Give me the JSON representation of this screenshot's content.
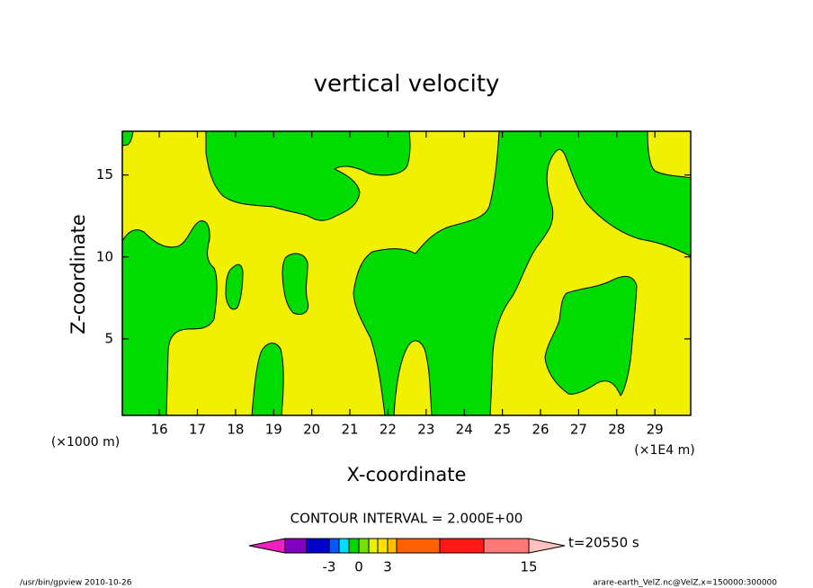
{
  "chart_data": {
    "type": "contour",
    "title": "vertical velocity",
    "x_label": "X-coordinate",
    "y_label": "Z-coordinate",
    "x_unit": "(×1E4 m)",
    "y_unit": "(×1000 m)",
    "xlim": [
      15.03,
      29.94
    ],
    "xticks": [
      16,
      17,
      18,
      19,
      20,
      21,
      22,
      23,
      24,
      25,
      26,
      27,
      28,
      29
    ],
    "ylim": [
      0.33,
      17.67
    ],
    "yticks": [
      5,
      10,
      15
    ],
    "contour_note": "CONTOUR INTERVAL = 2.000E+00",
    "time_label": "t=20550 s",
    "colorbar": {
      "levels": [
        -7,
        -5,
        -3,
        -2,
        -1,
        0,
        1,
        2,
        3,
        4,
        7,
        10,
        15
      ],
      "colors": [
        "#f020c0",
        "#8000c0",
        "#0000c8",
        "#0058ff",
        "#00dcff",
        "#00d800",
        "#70e000",
        "#e8f000",
        "#ffe000",
        "#ffc000",
        "#ff6000",
        "#ff1818",
        "#ff7878",
        "#ffc0c0"
      ],
      "ticks": [
        -3,
        0,
        3,
        15
      ]
    },
    "footer_left": "/usr/bin/gpview   2010-10-26",
    "footer_right": "arare-earth_VelZ.nc@VelZ,x=150000:300000"
  }
}
